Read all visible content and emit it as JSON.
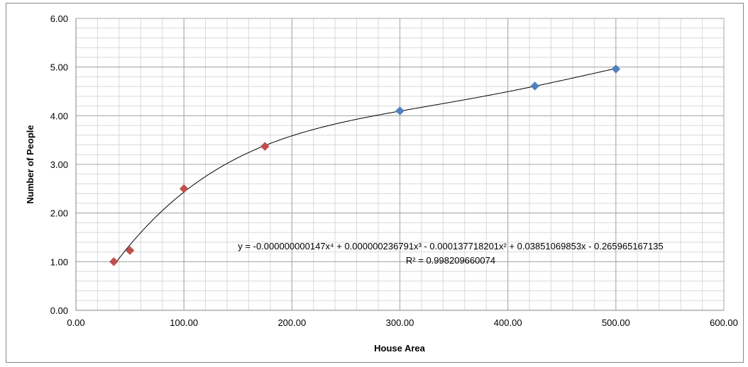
{
  "chart_data": {
    "type": "scatter",
    "xlabel": "House Area",
    "ylabel": "Number of People",
    "xlim": [
      0,
      600
    ],
    "ylim": [
      0,
      6
    ],
    "x_ticks": [
      "0.00",
      "100.00",
      "200.00",
      "300.00",
      "400.00",
      "500.00",
      "600.00"
    ],
    "y_ticks": [
      "0.00",
      "1.00",
      "2.00",
      "3.00",
      "4.00",
      "5.00",
      "6.00"
    ],
    "grid": true,
    "legend": "none",
    "series": [
      {
        "color": "#C0504D",
        "marker": "diamond",
        "points": [
          {
            "x": 35,
            "y": 1.0
          },
          {
            "x": 50,
            "y": 1.23
          },
          {
            "x": 100,
            "y": 2.5
          },
          {
            "x": 175,
            "y": 3.37
          }
        ]
      },
      {
        "color": "#4F81BD",
        "marker": "diamond",
        "points": [
          {
            "x": 300,
            "y": 4.1
          },
          {
            "x": 425,
            "y": 4.61
          },
          {
            "x": 500,
            "y": 4.96
          }
        ]
      }
    ],
    "trendline": {
      "type": "polynomial",
      "order": 4,
      "coefficients": [
        -1.47e-10,
        2.36791e-07,
        -0.000137718201,
        0.03851069853,
        -0.265965167135
      ],
      "x_range": [
        35,
        500
      ],
      "color": "#000000"
    },
    "annotations": {
      "equation": "y = -0.000000000147x⁴ + 0.000000236791x³ - 0.000137718201x² + 0.03851069853x - 0.265965167135",
      "r_squared": "R² = 0.998209660074"
    }
  }
}
